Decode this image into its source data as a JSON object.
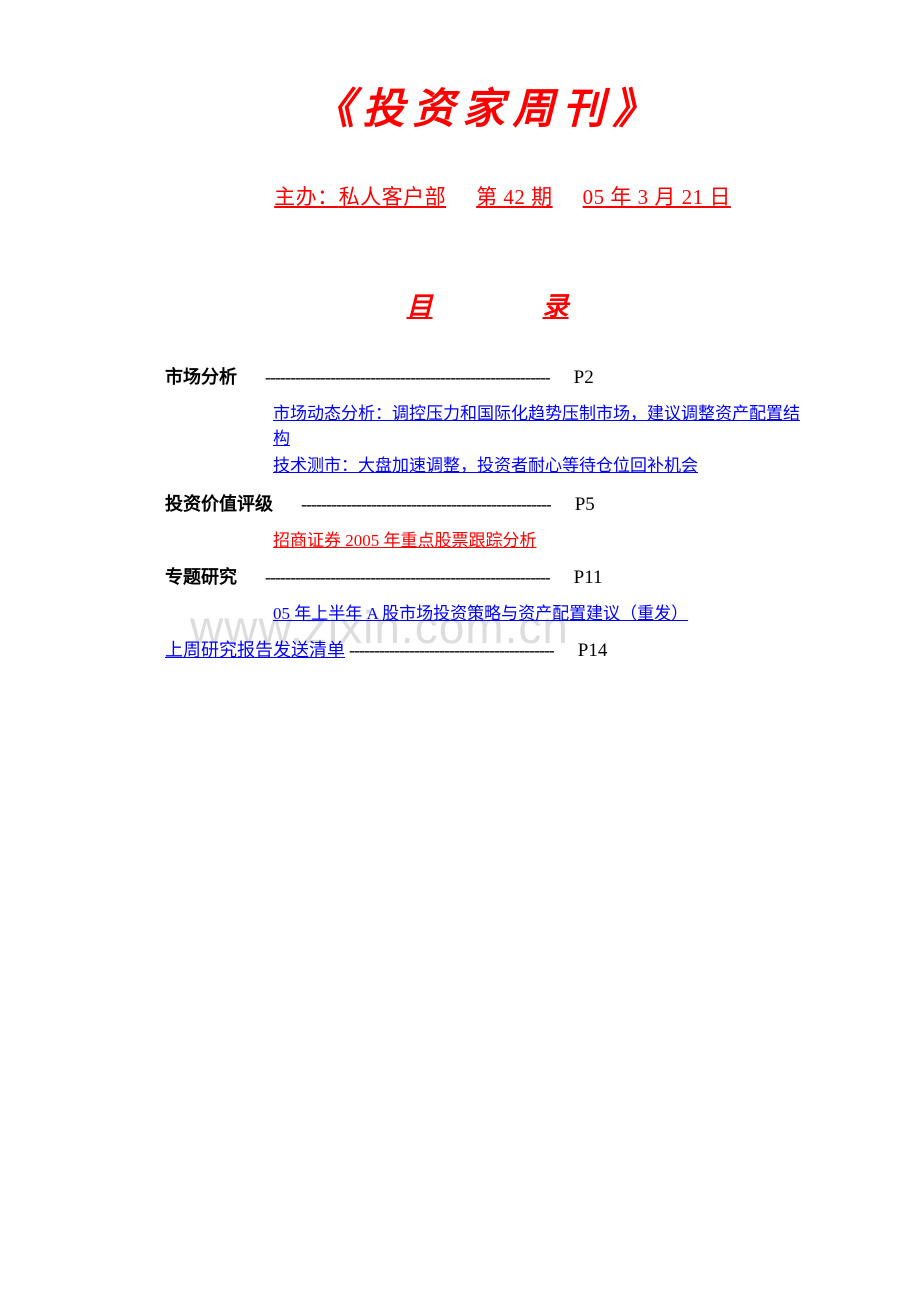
{
  "colors": {
    "title": "#ff0000",
    "link_blue": "#0000ff",
    "link_red": "#ff0000",
    "text": "#000000",
    "watermark": "#dddddd",
    "background": "#ffffff"
  },
  "title": "《投资家周刊》",
  "subtitle": {
    "host_label": "主办：",
    "host_value": "私人客户部",
    "issue": "第  42 期",
    "date": "05 年 3 月 21 日"
  },
  "toc_heading": {
    "char1": "目",
    "char2": "录"
  },
  "sections": [
    {
      "title": "市场分析",
      "dashes": "---------------------------------------------------------",
      "page": "P2",
      "links": [
        {
          "text": "市场动态分析：调控压力和国际化趋势压制市场，建议调整资产配置结构",
          "color": "blue"
        },
        {
          "text": "技术测市：大盘加速调整，投资者耐心等待仓位回补机会",
          "color": "blue"
        }
      ]
    },
    {
      "title": "投资价值评级",
      "dashes": "--------------------------------------------------",
      "page": "P5",
      "links": [
        {
          "text": "招商证券 2005 年重点股票跟踪分析",
          "color": "red"
        }
      ]
    },
    {
      "title": "专题研究",
      "dashes": "---------------------------------------------------------",
      "page": "P11",
      "links": [
        {
          "text": "05 年上半年 A 股市场投资策略与资产配置建议（重发）",
          "color": "blue"
        }
      ]
    }
  ],
  "last_row": {
    "link_text": "上周研究报告发送清单",
    "dashes": "-----------------------------------------",
    "page": "P14"
  },
  "watermark": "www.zixin.com.cn"
}
